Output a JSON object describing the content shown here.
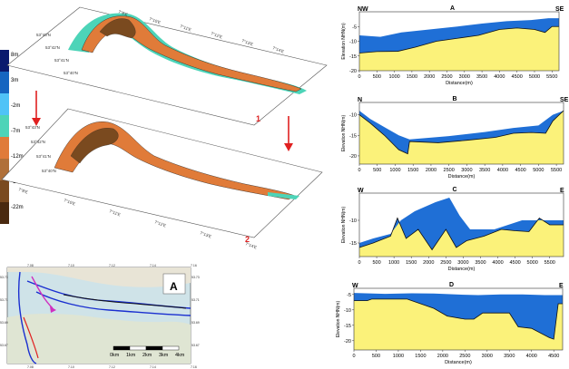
{
  "legend": {
    "colors": [
      "#0a1a6e",
      "#1565c0",
      "#4fc3f7",
      "#4dd4b8",
      "#e07b39",
      "#b0703a",
      "#7a4a1f",
      "#4a2a10"
    ],
    "labels": [
      "8m",
      "3m",
      "-2m",
      "-7m",
      "-12m",
      "-17m",
      "-22m"
    ]
  },
  "maps": {
    "map1_number": "1",
    "map2_number": "2",
    "lat_labels_1": [
      "53°43'N",
      "53°42'N",
      "53°41'N",
      "53°40'N"
    ],
    "lon_labels_1": [
      "7°8'E",
      "7°10'E",
      "7°11'E",
      "7°12'E",
      "7°13'E",
      "7°14'E"
    ],
    "lat_labels_2": [
      "53°43'N",
      "53°42'N",
      "53°41'N",
      "53°40'N"
    ],
    "lon_labels_2": [
      "7°8'E",
      "7°10'E",
      "7°11'E",
      "7°12'E",
      "7°13'E",
      "7°14'E"
    ],
    "arrow_color": "#e02020"
  },
  "locator": {
    "compass_letter": "A",
    "scale_labels": [
      "0km",
      "1km",
      "2km",
      "3km",
      "4km"
    ],
    "top_ticks": [
      "7.08",
      "7.10",
      "7.12",
      "7.14",
      "7.16"
    ],
    "bottom_ticks": [
      "7.08",
      "7.10",
      "7.12",
      "7.14",
      "7.16"
    ],
    "left_ticks": [
      "53.73",
      "53.71",
      "53.69",
      "53.67"
    ],
    "right_ticks": [
      "53.73",
      "53.71",
      "53.69",
      "53.67"
    ]
  },
  "profiles": [
    {
      "id": "A",
      "left": "NW",
      "right": "SE",
      "xlabel": "Distance(m)",
      "ylabel": "Elevation NHN(m)",
      "yticks": [
        "-5",
        "-10",
        "-15",
        "-20"
      ],
      "xticks": [
        "0",
        "500",
        "1000",
        "1500",
        "2000",
        "2500",
        "3000",
        "3500",
        "4000",
        "4500",
        "5000",
        "5500"
      ],
      "ylim": [
        -20,
        0
      ],
      "xlim": [
        0,
        5700
      ],
      "old_surface": [
        [
          0,
          -8
        ],
        [
          600,
          -8.5
        ],
        [
          1200,
          -7
        ],
        [
          2000,
          -6
        ],
        [
          2800,
          -5
        ],
        [
          3500,
          -4
        ],
        [
          4200,
          -3.2
        ],
        [
          4900,
          -2.8
        ],
        [
          5400,
          -2.2
        ],
        [
          5700,
          -2.2
        ]
      ],
      "new_surface": [
        [
          0,
          -14
        ],
        [
          500,
          -13.5
        ],
        [
          1100,
          -13.4
        ],
        [
          1600,
          -12
        ],
        [
          2200,
          -10
        ],
        [
          2800,
          -9
        ],
        [
          3400,
          -8
        ],
        [
          4000,
          -6
        ],
        [
          4500,
          -5.5
        ],
        [
          5000,
          -6
        ],
        [
          5300,
          -7
        ],
        [
          5500,
          -5
        ],
        [
          5700,
          -5
        ]
      ]
    },
    {
      "id": "B",
      "left": "N",
      "right": "SE",
      "xlabel": "Distance(m)",
      "ylabel": "Elevation NHN(m)",
      "yticks": [
        "-10",
        "-15",
        "-20"
      ],
      "xticks": [
        "0",
        "500",
        "1000",
        "1500",
        "2000",
        "2500",
        "3000",
        "3500",
        "4000",
        "4500",
        "5000",
        "5500"
      ],
      "ylim": [
        -22,
        -7
      ],
      "xlim": [
        0,
        5700
      ],
      "old_surface": [
        [
          0,
          -9
        ],
        [
          300,
          -11
        ],
        [
          700,
          -13
        ],
        [
          1100,
          -15
        ],
        [
          1400,
          -16
        ],
        [
          2500,
          -15.2
        ],
        [
          3500,
          -14.2
        ],
        [
          4300,
          -13.2
        ],
        [
          5000,
          -12.6
        ],
        [
          5400,
          -10
        ],
        [
          5700,
          -9
        ]
      ],
      "new_surface": [
        [
          0,
          -10
        ],
        [
          300,
          -12
        ],
        [
          700,
          -15
        ],
        [
          1100,
          -18.5
        ],
        [
          1350,
          -19.5
        ],
        [
          1400,
          -16.5
        ],
        [
          2200,
          -16.8
        ],
        [
          3000,
          -16.2
        ],
        [
          3800,
          -15.5
        ],
        [
          4300,
          -14.5
        ],
        [
          4800,
          -14.3
        ],
        [
          5200,
          -14.5
        ],
        [
          5400,
          -11.5
        ],
        [
          5700,
          -9
        ]
      ]
    },
    {
      "id": "C",
      "left": "W",
      "right": "E",
      "xlabel": "Distance(m)",
      "ylabel": "Elevation NHN(m)",
      "yticks": [
        "-10",
        "-15"
      ],
      "xticks": [
        "0",
        "500",
        "1000",
        "1500",
        "2000",
        "2500",
        "3000",
        "3500",
        "4000",
        "4500",
        "5000",
        "5500"
      ],
      "ylim": [
        -18,
        -4
      ],
      "xlim": [
        0,
        5900
      ],
      "old_surface": [
        [
          0,
          -15
        ],
        [
          400,
          -14
        ],
        [
          900,
          -13
        ],
        [
          1200,
          -10
        ],
        [
          1600,
          -8
        ],
        [
          2200,
          -6
        ],
        [
          2600,
          -5
        ],
        [
          2900,
          -9
        ],
        [
          3200,
          -12
        ],
        [
          3500,
          -12
        ],
        [
          3900,
          -12
        ],
        [
          4300,
          -11
        ],
        [
          4700,
          -10
        ],
        [
          5100,
          -10
        ],
        [
          5400,
          -10
        ],
        [
          5900,
          -10
        ]
      ],
      "new_surface": [
        [
          0,
          -16
        ],
        [
          400,
          -15
        ],
        [
          900,
          -13.5
        ],
        [
          1100,
          -9.5
        ],
        [
          1350,
          -14
        ],
        [
          1700,
          -12
        ],
        [
          2100,
          -16.5
        ],
        [
          2500,
          -12
        ],
        [
          2800,
          -16
        ],
        [
          3100,
          -14.5
        ],
        [
          3600,
          -13.5
        ],
        [
          4100,
          -12
        ],
        [
          4500,
          -12.3
        ],
        [
          4900,
          -12.5
        ],
        [
          5200,
          -9.5
        ],
        [
          5500,
          -11
        ],
        [
          5900,
          -11
        ]
      ]
    },
    {
      "id": "D",
      "left": "W",
      "right": "E",
      "xlabel": "Distance(m)",
      "ylabel": "Elevation NHN(m)",
      "yticks": [
        "-5",
        "-10",
        "-15",
        "-20"
      ],
      "xticks": [
        "0",
        "500",
        "1000",
        "1500",
        "2000",
        "2500",
        "3000",
        "3500",
        "4000",
        "4500"
      ],
      "ylim": [
        -23,
        -3
      ],
      "xlim": [
        0,
        4700
      ],
      "old_surface": [
        [
          0,
          -4.5
        ],
        [
          700,
          -4.8
        ],
        [
          1300,
          -4.6
        ],
        [
          1800,
          -4.7
        ],
        [
          2300,
          -5
        ],
        [
          2800,
          -5.2
        ],
        [
          3300,
          -5
        ],
        [
          3800,
          -5
        ],
        [
          4300,
          -5.2
        ],
        [
          4700,
          -5.2
        ]
      ],
      "new_surface": [
        [
          0,
          -7
        ],
        [
          300,
          -7
        ],
        [
          400,
          -6.5
        ],
        [
          1200,
          -6.5
        ],
        [
          1500,
          -8
        ],
        [
          1800,
          -9.5
        ],
        [
          2100,
          -12
        ],
        [
          2500,
          -13
        ],
        [
          2700,
          -13
        ],
        [
          2900,
          -11
        ],
        [
          3500,
          -11
        ],
        [
          3700,
          -15.5
        ],
        [
          4000,
          -16
        ],
        [
          4400,
          -19
        ],
        [
          4500,
          -19.5
        ],
        [
          4600,
          -8
        ],
        [
          4700,
          -8
        ]
      ]
    }
  ]
}
